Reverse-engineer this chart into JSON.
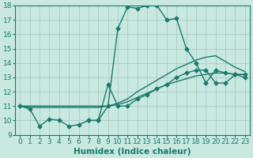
{
  "xlabel": "Humidex (Indice chaleur)",
  "xlim_min": -0.5,
  "xlim_max": 23.5,
  "ylim_min": 9,
  "ylim_max": 18,
  "xticks": [
    0,
    1,
    2,
    3,
    4,
    5,
    6,
    7,
    8,
    9,
    10,
    11,
    12,
    13,
    14,
    15,
    16,
    17,
    18,
    19,
    20,
    21,
    22,
    23
  ],
  "yticks": [
    9,
    10,
    11,
    12,
    13,
    14,
    15,
    16,
    17,
    18
  ],
  "bg_color": "#c8e8e0",
  "line_color": "#1a7a6a",
  "grid_color": "#a0c8c0",
  "tick_fontsize": 6.5,
  "label_fontsize": 7.5,
  "line1_x": [
    0,
    1,
    2,
    3,
    4,
    5,
    6,
    7,
    8,
    9,
    10,
    11,
    12,
    13,
    14,
    15,
    16,
    17,
    18,
    19,
    20,
    21,
    22,
    23
  ],
  "line1_y": [
    11.0,
    10.8,
    9.6,
    10.1,
    10.0,
    9.6,
    9.7,
    10.0,
    10.0,
    11.0,
    16.4,
    17.9,
    17.8,
    18.0,
    18.0,
    17.0,
    17.1,
    15.0,
    14.0,
    12.6,
    13.5,
    13.3,
    13.2,
    13.2
  ],
  "line2_x": [
    0,
    1,
    2,
    3,
    4,
    5,
    6,
    7,
    8,
    9,
    10,
    11,
    12,
    13,
    14,
    15,
    16,
    17,
    18,
    19,
    20,
    21,
    22,
    23
  ],
  "line2_y": [
    11.0,
    10.9,
    10.9,
    10.9,
    10.9,
    10.9,
    10.9,
    10.9,
    10.9,
    11.0,
    11.1,
    11.3,
    11.6,
    11.9,
    12.2,
    12.5,
    12.7,
    12.9,
    13.1,
    13.2,
    13.3,
    13.3,
    13.2,
    13.2
  ],
  "line3_x": [
    0,
    1,
    2,
    3,
    4,
    5,
    6,
    7,
    8,
    9,
    10,
    11,
    12,
    13,
    14,
    15,
    16,
    17,
    18,
    19,
    20,
    21,
    22,
    23
  ],
  "line3_y": [
    11.0,
    11.0,
    11.0,
    11.0,
    11.0,
    11.0,
    11.0,
    11.0,
    11.0,
    11.0,
    11.2,
    11.5,
    12.0,
    12.4,
    12.8,
    13.2,
    13.6,
    13.9,
    14.2,
    14.4,
    14.5,
    14.1,
    13.7,
    13.4
  ],
  "line4_x": [
    7,
    8,
    9,
    10,
    11,
    12,
    13,
    14,
    15,
    16,
    17,
    18,
    19,
    20,
    21,
    22,
    23
  ],
  "line4_y": [
    10.0,
    10.0,
    12.5,
    11.0,
    11.0,
    11.5,
    11.8,
    12.2,
    12.5,
    13.0,
    13.3,
    13.5,
    13.5,
    12.6,
    12.6,
    13.2,
    13.0
  ]
}
